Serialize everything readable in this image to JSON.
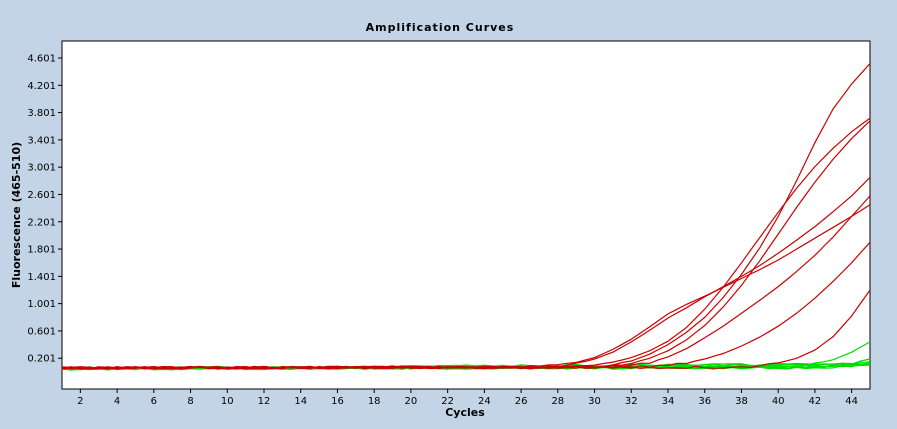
{
  "chart_data": {
    "type": "line",
    "title": "Amplification Curves",
    "xlabel": "Cycles",
    "ylabel": "Fluorescence (465-510)",
    "xlim": [
      1,
      45
    ],
    "ylim": [
      -0.25,
      4.85
    ],
    "x_ticks": [
      2,
      4,
      6,
      8,
      10,
      12,
      14,
      16,
      18,
      20,
      22,
      24,
      26,
      28,
      30,
      32,
      34,
      36,
      38,
      40,
      42,
      44
    ],
    "y_ticks": [
      0.201,
      0.601,
      1.001,
      1.401,
      1.801,
      2.201,
      2.601,
      3.001,
      3.401,
      3.801,
      4.201,
      4.601
    ],
    "y_tick_labels": [
      "0.201",
      "0.601",
      "1.001",
      "1.401",
      "1.801",
      "2.201",
      "2.601",
      "3.001",
      "3.401",
      "3.801",
      "4.201",
      "4.601"
    ],
    "grid": false,
    "colors": {
      "positive": "#cc0000",
      "negative": "#00dd00",
      "background": "#c2d4e6",
      "plot": "#ffffff"
    },
    "series": [
      {
        "color": "#cc0000",
        "x": [
          1,
          26,
          28,
          29,
          30,
          31,
          32,
          33,
          34,
          35,
          36,
          37,
          38,
          39,
          40,
          41,
          42,
          43,
          44,
          45
        ],
        "values": [
          0.06,
          0.07,
          0.1,
          0.14,
          0.21,
          0.33,
          0.48,
          0.66,
          0.85,
          0.99,
          1.11,
          1.24,
          1.37,
          1.5,
          1.64,
          1.8,
          1.96,
          2.12,
          2.28,
          2.45
        ]
      },
      {
        "color": "#cc0000",
        "x": [
          1,
          26,
          28,
          29,
          30,
          31,
          32,
          33,
          34,
          35,
          36,
          37,
          38,
          39,
          40,
          41,
          42,
          43,
          44,
          45
        ],
        "values": [
          0.06,
          0.07,
          0.08,
          0.12,
          0.19,
          0.29,
          0.44,
          0.61,
          0.79,
          0.94,
          1.1,
          1.25,
          1.4,
          1.56,
          1.74,
          1.93,
          2.13,
          2.35,
          2.58,
          2.85
        ]
      },
      {
        "color": "#cc0000",
        "x": [
          1,
          28,
          30,
          31,
          32,
          33,
          34,
          35,
          36,
          37,
          38,
          39,
          40,
          41,
          42,
          43,
          44,
          45
        ],
        "values": [
          0.06,
          0.07,
          0.1,
          0.14,
          0.21,
          0.31,
          0.45,
          0.65,
          0.92,
          1.24,
          1.6,
          1.97,
          2.34,
          2.69,
          3.01,
          3.28,
          3.52,
          3.72
        ]
      },
      {
        "color": "#cc0000",
        "x": [
          1,
          29,
          31,
          32,
          33,
          34,
          35,
          36,
          37,
          38,
          39,
          40,
          41,
          42,
          43,
          44,
          45
        ],
        "values": [
          0.06,
          0.07,
          0.09,
          0.13,
          0.2,
          0.31,
          0.47,
          0.68,
          0.95,
          1.27,
          1.63,
          2.02,
          2.41,
          2.78,
          3.12,
          3.42,
          3.68
        ]
      },
      {
        "color": "#cc0000",
        "x": [
          1,
          29,
          31,
          32,
          33,
          34,
          35,
          36,
          37,
          38,
          39,
          40,
          41,
          42,
          43,
          44,
          45
        ],
        "values": [
          0.06,
          0.07,
          0.1,
          0.16,
          0.26,
          0.4,
          0.58,
          0.8,
          1.09,
          1.43,
          1.82,
          2.28,
          2.8,
          3.36,
          3.86,
          4.22,
          4.52
        ]
      },
      {
        "color": "#cc0000",
        "x": [
          1,
          30,
          32,
          33,
          34,
          35,
          36,
          37,
          38,
          39,
          40,
          41,
          42,
          43,
          44,
          45
        ],
        "values": [
          0.06,
          0.07,
          0.09,
          0.14,
          0.22,
          0.34,
          0.5,
          0.67,
          0.86,
          1.05,
          1.25,
          1.47,
          1.71,
          1.98,
          2.28,
          2.58
        ]
      },
      {
        "color": "#cc0000",
        "x": [
          1,
          32,
          34,
          35,
          36,
          37,
          38,
          39,
          40,
          41,
          42,
          43,
          44,
          45
        ],
        "values": [
          0.06,
          0.07,
          0.09,
          0.13,
          0.19,
          0.27,
          0.38,
          0.51,
          0.67,
          0.86,
          1.08,
          1.33,
          1.6,
          1.9
        ]
      },
      {
        "color": "#cc0000",
        "x": [
          1,
          38,
          39,
          40,
          41,
          42,
          43,
          44,
          45
        ],
        "values": [
          0.06,
          0.07,
          0.09,
          0.13,
          0.2,
          0.32,
          0.52,
          0.82,
          1.2
        ]
      },
      {
        "color": "#00dd00",
        "x": [
          1,
          40,
          41,
          42,
          43,
          44,
          45
        ],
        "values": [
          0.05,
          0.06,
          0.08,
          0.12,
          0.18,
          0.29,
          0.44
        ]
      },
      {
        "color": "#00dd00",
        "x": [
          1,
          42,
          43,
          44,
          45
        ],
        "values": [
          0.05,
          0.06,
          0.09,
          0.13,
          0.19
        ]
      },
      {
        "color": "#00dd00",
        "x": [
          1,
          43,
          44,
          45
        ],
        "values": [
          0.05,
          0.06,
          0.1,
          0.15
        ]
      },
      {
        "color": "#00dd00",
        "x": [
          1,
          44,
          45
        ],
        "values": [
          0.05,
          0.08,
          0.13
        ]
      },
      {
        "color": "#00dd00",
        "x": [
          1,
          45
        ],
        "values": [
          0.04,
          0.1
        ]
      },
      {
        "color": "#00dd00",
        "x": [
          1,
          45
        ],
        "values": [
          0.05,
          0.11
        ]
      },
      {
        "color": "#00dd00",
        "x": [
          1,
          45
        ],
        "values": [
          0.04,
          0.09
        ]
      },
      {
        "color": "#00dd00",
        "x": [
          1,
          45
        ],
        "values": [
          0.05,
          0.12
        ]
      }
    ]
  }
}
